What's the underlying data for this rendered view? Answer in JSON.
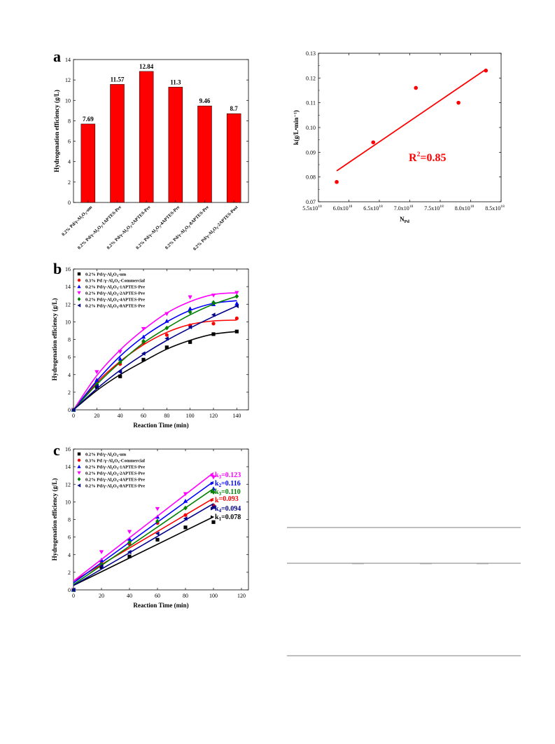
{
  "chart_data": [
    {
      "id": "a",
      "type": "bar",
      "panel_label": "a",
      "title": "",
      "ylabel": "Hydrogenation efficiency (g/L)",
      "xlabel": "",
      "ylim": [
        0,
        14
      ],
      "yticks": [
        0,
        2,
        4,
        6,
        8,
        10,
        12,
        14
      ],
      "bar_color": "#ff0000",
      "categories": [
        "0.2% Pd/γ-Al2O3-um",
        "0.2% Pd/γ-Al2O3-1APTES-Pre",
        "0.2% Pd/γ-Al2O3-2APTES-Pre",
        "0.2% Pd/γ-Al2O3-4APTES-Pre",
        "0.2% Pd/γ-Al2O3-8APTES-Pre",
        "0.2% Pd/γ-Al2O3-2APTES-Post"
      ],
      "values": [
        7.69,
        11.57,
        12.84,
        11.3,
        9.46,
        8.7
      ],
      "value_labels": [
        "7.69",
        "11.57",
        "12.84",
        "11.3",
        "9.46",
        "8.7"
      ]
    },
    {
      "id": "r",
      "type": "scatter",
      "panel_label": "",
      "ylabel": "k(g/L•min⁻¹)",
      "xlabel": "N",
      "xlabel_sub": "Pd",
      "xlim": [
        5.5,
        8.5
      ],
      "ylim": [
        0.07,
        0.13
      ],
      "x_ticks": [
        "5.5x10",
        "6.0x10",
        "6.5x10",
        "7.0x10",
        "7.5x10",
        "8.0x10",
        "8.5x10"
      ],
      "x_tick_exp": "18",
      "y_ticks": [
        "0.07",
        "0.08",
        "0.09",
        "0.10",
        "0.11",
        "0.12",
        "0.13"
      ],
      "point_color": "#ff0000",
      "x": [
        5.8,
        6.4,
        7.1,
        7.8,
        8.25
      ],
      "y": [
        0.078,
        0.094,
        0.116,
        0.11,
        0.123
      ],
      "fit_line": {
        "x": [
          5.8,
          8.25
        ],
        "y": [
          0.0825,
          0.1235
        ]
      },
      "annotation": {
        "text": "R",
        "sup": "2",
        "rest": "=0.85",
        "color": "#ff0000"
      }
    },
    {
      "id": "b",
      "type": "scatter",
      "panel_label": "b",
      "xlabel": "Reaction Time (min)",
      "ylabel": "Hydrogenation efficiency (g/L)",
      "xlim": [
        0,
        150
      ],
      "ylim": [
        0,
        16
      ],
      "xticks": [
        0,
        20,
        40,
        60,
        80,
        100,
        120,
        140
      ],
      "yticks": [
        0,
        2,
        4,
        6,
        8,
        10,
        12,
        14,
        16
      ],
      "x": [
        0,
        20,
        40,
        60,
        80,
        100,
        120,
        140
      ],
      "series": [
        {
          "name": "0.2% Pd/γ-Al2O3-um",
          "color": "#000000",
          "marker": "square",
          "values": [
            0,
            2.6,
            3.8,
            5.7,
            7.1,
            7.7,
            8.6,
            8.9
          ],
          "fit": [
            0,
            2.2,
            4.0,
            5.5,
            6.9,
            7.9,
            8.6,
            8.9
          ]
        },
        {
          "name": "0.3% Pd /γ-Al2O3-Commercial",
          "color": "#ff0000",
          "marker": "circle",
          "values": [
            0,
            3.2,
            5.2,
            7.6,
            8.5,
            9.6,
            9.8,
            10.4
          ],
          "fit": [
            0,
            3.1,
            5.5,
            7.4,
            8.8,
            9.7,
            10.1,
            10.2
          ]
        },
        {
          "name": "0.2% Pd/γ-Al2O3-1APTES-Pre",
          "color": "#0000ff",
          "marker": "triangle-up",
          "values": [
            0,
            3.4,
            5.8,
            8.3,
            10.1,
            11.5,
            12.0,
            12.1
          ],
          "fit": [
            0,
            3.3,
            6.1,
            8.3,
            10.0,
            11.3,
            12.1,
            12.4
          ]
        },
        {
          "name": "0.2% Pd/γ-Al2O3-2APTES-Pre",
          "color": "#ff00ff",
          "marker": "triangle-down",
          "values": [
            0,
            4.3,
            6.6,
            9.2,
            10.9,
            12.8,
            13.0,
            13.3
          ],
          "fit": [
            0,
            3.9,
            6.8,
            9.1,
            11.0,
            12.3,
            13.1,
            13.3
          ]
        },
        {
          "name": "0.2% Pd/γ-Al2O3-4APTES-Pre",
          "color": "#008000",
          "marker": "diamond",
          "values": [
            0,
            2.9,
            5.4,
            7.8,
            9.3,
            11.1,
            12.2,
            12.9
          ],
          "fit": [
            0,
            2.9,
            5.4,
            7.6,
            9.3,
            10.8,
            12.0,
            12.9
          ]
        },
        {
          "name": "0.2% Pd/γ-Al2O3-8APTES-Pre",
          "color": "#00008b",
          "marker": "triangle-left",
          "values": [
            0,
            2.7,
            4.3,
            6.4,
            8.1,
            9.4,
            10.8,
            11.8
          ],
          "fit": [
            0,
            2.4,
            4.5,
            6.3,
            7.9,
            9.3,
            10.6,
            11.8
          ]
        }
      ]
    },
    {
      "id": "c",
      "type": "scatter",
      "panel_label": "c",
      "xlabel": "Reaction Time (min)",
      "ylabel": "Hydrogenation efficiency (g/L)",
      "xlim": [
        0,
        125
      ],
      "ylim": [
        0,
        16
      ],
      "xticks": [
        0,
        20,
        40,
        60,
        80,
        100,
        120
      ],
      "yticks": [
        0,
        2,
        4,
        6,
        8,
        10,
        12,
        14,
        16
      ],
      "x": [
        0,
        20,
        40,
        60,
        80,
        100
      ],
      "series": [
        {
          "name": "0.2% Pd/γ-Al2O3-um",
          "color": "#000000",
          "marker": "square",
          "values": [
            0,
            2.6,
            3.8,
            5.7,
            7.1,
            7.7
          ],
          "fit": [
            0.5,
            8.3
          ],
          "k_label": "k",
          "k_sub": "1",
          "k_value": "=0.078"
        },
        {
          "name": "0.3% Pd /γ-Al2O3-Commercial",
          "color": "#ff0000",
          "marker": "circle",
          "values": [
            0,
            3.2,
            5.2,
            7.6,
            8.5,
            9.6
          ],
          "fit": [
            1.0,
            10.4
          ],
          "k_label": "k",
          "k_sub": "",
          "k_value": "=0.093"
        },
        {
          "name": "0.2% Pd/γ-Al2O3-1APTES-Pre",
          "color": "#0000ff",
          "marker": "triangle-up",
          "values": [
            0,
            3.4,
            5.8,
            8.3,
            10.1,
            11.5
          ],
          "fit": [
            0.8,
            12.3
          ],
          "k_label": "k",
          "k_sub": "2",
          "k_value": "=0.116"
        },
        {
          "name": "0.2% Pd/γ-Al2O3-2APTES-Pre",
          "color": "#ff00ff",
          "marker": "triangle-down",
          "values": [
            0,
            4.3,
            6.6,
            9.2,
            10.9,
            12.8
          ],
          "fit": [
            1.0,
            13.3
          ],
          "k_label": "k",
          "k_sub": "3",
          "k_value": "=0.123"
        },
        {
          "name": "0.2% Pd/γ-Al2O3-4APTES-Pre",
          "color": "#008000",
          "marker": "diamond",
          "values": [
            0,
            2.9,
            5.4,
            7.8,
            9.3,
            11.1
          ],
          "fit": [
            0.6,
            11.5
          ],
          "k_label": "k",
          "k_sub": "3",
          "k_value": "=0.110"
        },
        {
          "name": "0.2% Pd/γ-Al2O3-8APTES-Pre",
          "color": "#00008b",
          "marker": "triangle-left",
          "values": [
            0,
            2.7,
            4.3,
            6.4,
            8.1,
            9.4
          ],
          "fit": [
            0.5,
            9.8
          ],
          "k_label": "k",
          "k_sub": "4",
          "k_value": "=0.094"
        }
      ]
    }
  ]
}
